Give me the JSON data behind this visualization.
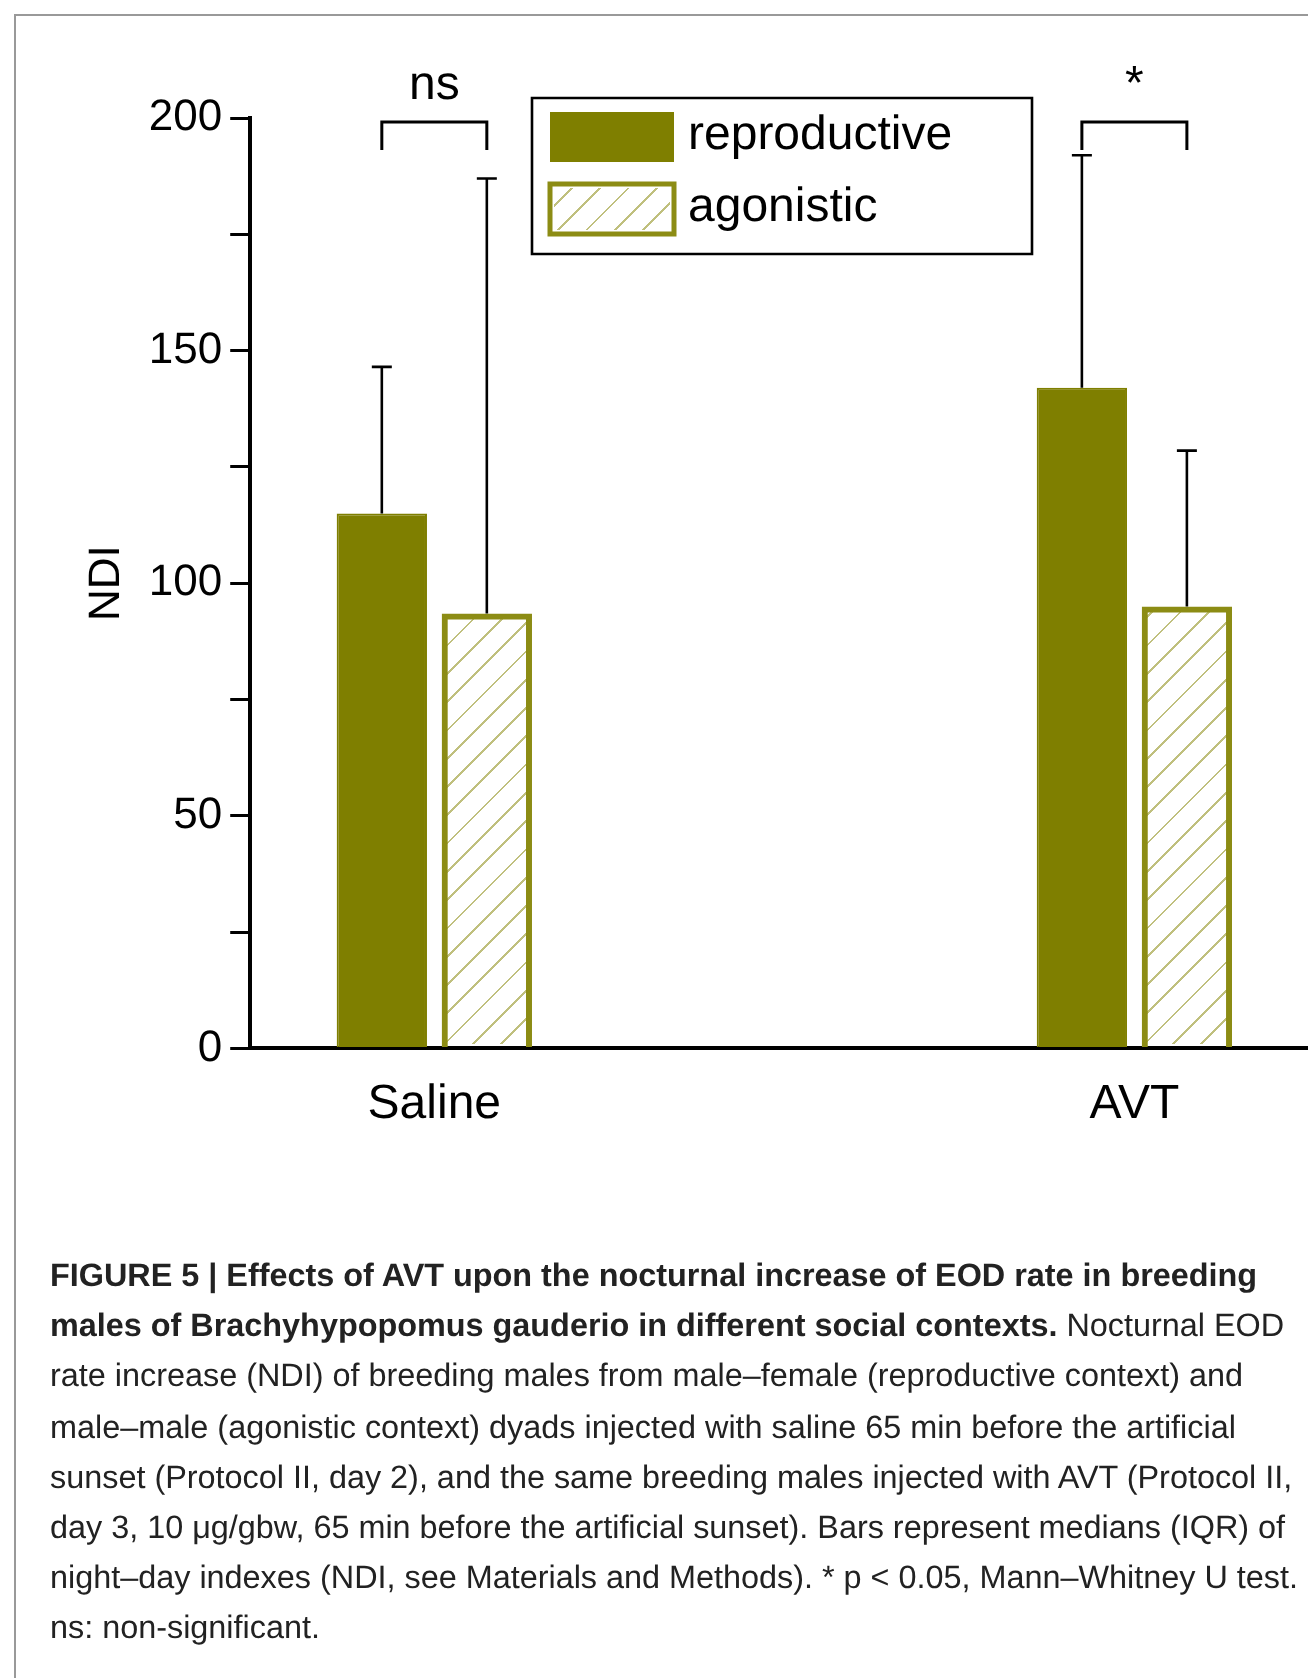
{
  "chart_data": {
    "type": "bar",
    "title": "FIGURE 5 | Effects of AVT upon the nocturnal increase of EOD rate in breeding males of Brachyhypopomus gauderio in different social contexts.",
    "ylabel": "NDI",
    "categories": [
      "Saline",
      "AVT"
    ],
    "series": [
      {
        "name": "reproductive",
        "color": "#7f7f00",
        "values": [
          115,
          142
        ],
        "errors": [
          [
            115,
            146.5
          ],
          [
            142,
            192
          ]
        ]
      },
      {
        "name": "agonistic",
        "color": "#8c8c14",
        "values": [
          93.5,
          95
        ],
        "errors": [
          [
            93.5,
            187
          ],
          [
            95,
            128.5
          ]
        ]
      }
    ],
    "ylim": [
      0,
      200
    ],
    "yticks": [
      0,
      {
        "value": 25,
        "label": null
      },
      50,
      {
        "value": 75,
        "label": null
      },
      100,
      {
        "value": 125,
        "label": null
      },
      150,
      {
        "value": 175,
        "label": null
      },
      200
    ],
    "legend": "top right",
    "annotations": [
      "ns",
      "*",
      "Nocturnal EOD rate increase (NDI) of breeding males from male–female (reproductive context) and male–male (agonistic context) dyads injected with saline 65 min before the artificial sunset (Protocol II, day 2), and the same breeding males injected with AVT (Protocol II, day 3, 10 μg/gbw, 65 min before the artificial sunset). Bars represent medians (IQR) of night–day indexes (NDI, see Materials and Methods). * p < 0.05, Mann–Whitney U test. ns: non-significant."
    ]
  }
}
